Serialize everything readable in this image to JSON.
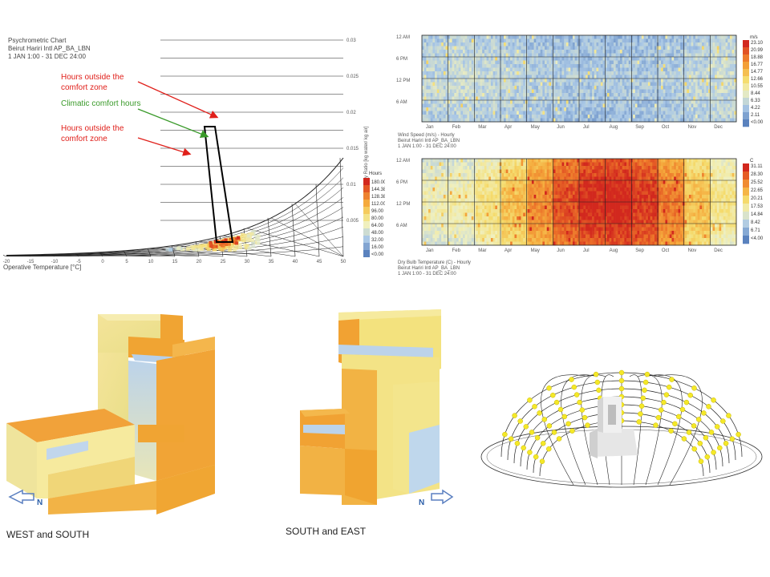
{
  "chart_data": [
    {
      "type": "psychrometric",
      "title": "Psychrometric Chart",
      "subtitle_station": "Beirut Hariri Intl AP_BA_LBN",
      "subtitle_period": "1 JAN 1:00 - 31 DEC 24:00",
      "xlabel": "Operative Temperature [°C]",
      "ylabel": "Humidity Ratio [kg water/ kg air]",
      "xlim": [
        -20,
        50
      ],
      "x_ticks": [
        "-20",
        "-15",
        "-10",
        "-5",
        "0",
        "5",
        "10",
        "15",
        "20",
        "25",
        "30",
        "35",
        "40",
        "45",
        "50"
      ],
      "y_ticks": [
        "0.005",
        "0.01",
        "0.015",
        "0.02",
        "0.025",
        "0.03"
      ],
      "legend_title": "Hours",
      "legend_values": [
        "180.00",
        "144.38",
        "128.38",
        "112.00",
        "96.00",
        "80.00",
        "64.00",
        "48.00",
        "32.00",
        "16.00",
        "<0.00"
      ],
      "annotations": [
        {
          "text": "Hours outside the comfort zone",
          "color": "#e0201b"
        },
        {
          "text": "Climatic comfort hours",
          "color": "#3a9a2a"
        },
        {
          "text": "Hours outside the comfort zone",
          "color": "#e0201b"
        }
      ]
    },
    {
      "type": "heatmap",
      "title": "Wind Speed (m/s) - Hourly",
      "subtitle_station": "Beirut Hariri Intl AP_BA_LBN",
      "subtitle_period": "1 JAN 1:00 - 31 DEC 24:00",
      "y_ticks": [
        "12 AM",
        "6 PM",
        "12 PM",
        "6 AM"
      ],
      "x_ticks": [
        "Jan",
        "Feb",
        "Mar",
        "Apr",
        "May",
        "Jun",
        "Jul",
        "Aug",
        "Sep",
        "Oct",
        "Nov",
        "Dec"
      ],
      "legend_unit": "m/s",
      "legend_values": [
        "23.10",
        "20.99",
        "18.88",
        "16.77",
        "14.77",
        "12.66",
        "10.55",
        "8.44",
        "6.33",
        "4.22",
        "2.11",
        "<0.00"
      ],
      "monthly_level": [
        0.22,
        0.24,
        0.22,
        0.2,
        0.18,
        0.17,
        0.16,
        0.16,
        0.16,
        0.18,
        0.22,
        0.24
      ]
    },
    {
      "type": "heatmap",
      "title": "Dry Bulb Temperature (C) - Hourly",
      "subtitle_station": "Beirut Hariri Intl AP_BA_LBN",
      "subtitle_period": "1 JAN 1:00 - 31 DEC 24:00",
      "y_ticks": [
        "12 AM",
        "6 PM",
        "12 PM",
        "6 AM"
      ],
      "x_ticks": [
        "Jan",
        "Feb",
        "Mar",
        "Apr",
        "May",
        "Jun",
        "Jul",
        "Aug",
        "Sep",
        "Oct",
        "Nov",
        "Dec"
      ],
      "legend_unit": "C",
      "legend_values": [
        "31.11",
        "28.30",
        "25.52",
        "22.65",
        "20.21",
        "17.53",
        "14.84",
        "8.42",
        "6.71",
        "<4.00"
      ],
      "monthly_level": [
        0.3,
        0.32,
        0.4,
        0.52,
        0.66,
        0.8,
        0.88,
        0.9,
        0.84,
        0.7,
        0.52,
        0.38
      ]
    }
  ],
  "renders": {
    "caption_left": "WEST and SOUTH",
    "caption_mid": "SOUTH and EAST",
    "north_label": "N"
  }
}
